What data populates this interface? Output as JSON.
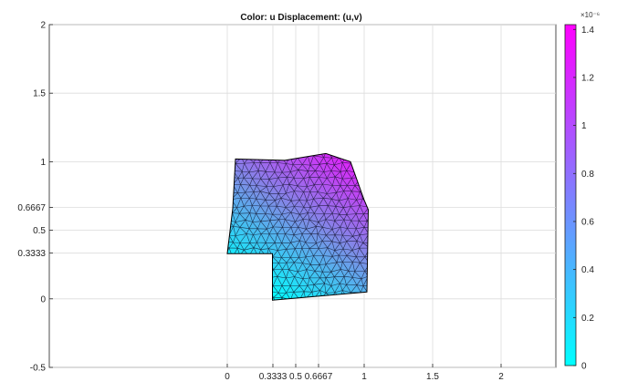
{
  "chart_data": {
    "type": "mesh-plot",
    "title": "Color: u  Displacement: (u,v)",
    "xlim": [
      -1.3,
      2.4
    ],
    "ylim": [
      -0.5,
      2
    ],
    "x_ticks": [
      {
        "value": 0,
        "label": "0"
      },
      {
        "value": 0.3333,
        "label": "0.3333"
      },
      {
        "value": 0.5,
        "label": "0.5"
      },
      {
        "value": 0.6667,
        "label": "0.6667"
      },
      {
        "value": 1,
        "label": "1"
      },
      {
        "value": 1.5,
        "label": "1.5"
      },
      {
        "value": 2,
        "label": "2"
      }
    ],
    "y_ticks": [
      {
        "value": -0.5,
        "label": "-0.5"
      },
      {
        "value": 0,
        "label": "0"
      },
      {
        "value": 0.3333,
        "label": "0.3333"
      },
      {
        "value": 0.5,
        "label": "0.5"
      },
      {
        "value": 0.6667,
        "label": "0.6667"
      },
      {
        "value": 1,
        "label": "1"
      },
      {
        "value": 1.5,
        "label": "1.5"
      },
      {
        "value": 2,
        "label": "2"
      }
    ],
    "grid": true,
    "boundary": [
      [
        0.33,
        -0.01
      ],
      [
        1.02,
        0.05
      ],
      [
        1.03,
        0.65
      ],
      [
        1.0,
        0.72
      ],
      [
        0.9,
        1.0
      ],
      [
        0.72,
        1.06
      ],
      [
        0.42,
        1.01
      ],
      [
        0.06,
        1.02
      ],
      [
        0.04,
        0.66
      ],
      [
        0.0,
        0.33
      ],
      [
        0.33,
        0.33
      ]
    ],
    "colorbar": {
      "min": 0,
      "max": 1.42,
      "exponent_label": "×10⁻⁶",
      "colors": [
        "#00ffff",
        "#ff00ff"
      ],
      "ticks": [
        {
          "value": 0,
          "label": "0"
        },
        {
          "value": 0.2,
          "label": "0.2"
        },
        {
          "value": 0.4,
          "label": "0.4"
        },
        {
          "value": 0.6,
          "label": "0.6"
        },
        {
          "value": 0.8,
          "label": "0.8"
        },
        {
          "value": 1,
          "label": "1"
        },
        {
          "value": 1.2,
          "label": "1.2"
        },
        {
          "value": 1.4,
          "label": "1.4"
        }
      ]
    }
  }
}
